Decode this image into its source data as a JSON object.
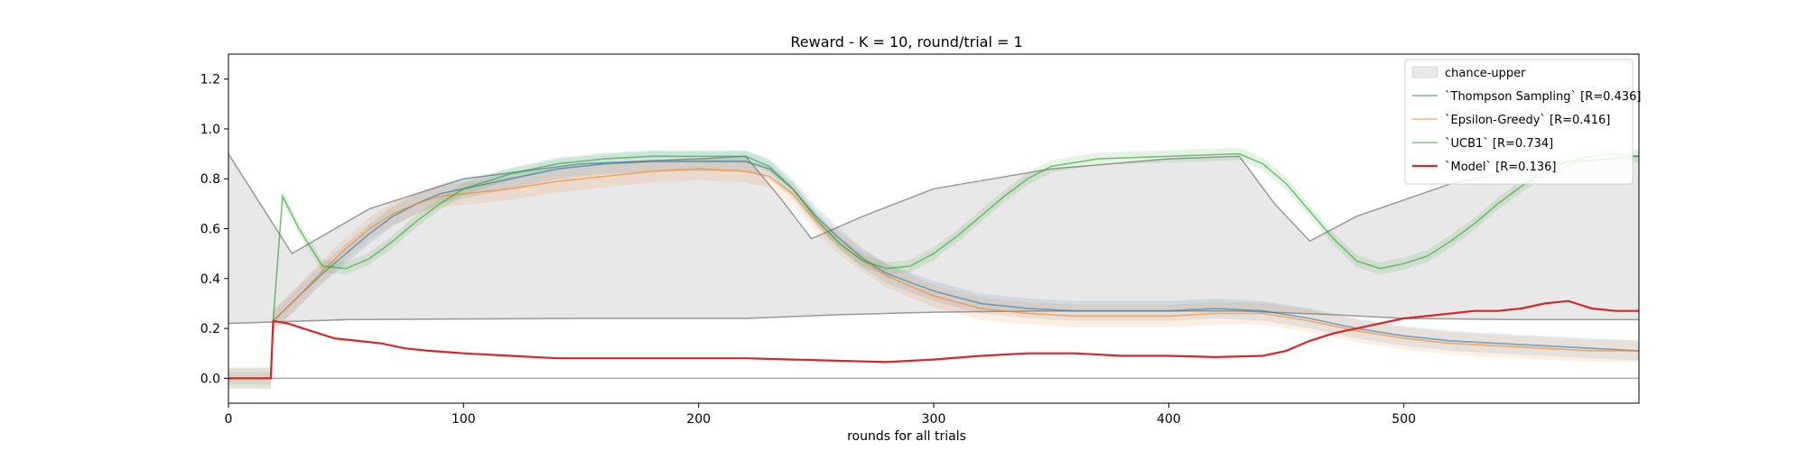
{
  "chart_data": {
    "type": "line",
    "title": "Reward - K = 10, round/trial = 1",
    "xlabel": "rounds for all trials",
    "ylabel": "",
    "xlim": [
      0,
      600
    ],
    "ylim": [
      -0.1,
      1.3
    ],
    "xticks": [
      0,
      100,
      200,
      300,
      400,
      500
    ],
    "yticks": [
      0.0,
      0.2,
      0.4,
      0.6,
      0.8,
      1.0,
      1.2
    ],
    "grid": false,
    "legend_position": "top-right",
    "reference_line": {
      "y": 0.0,
      "color": "#aaaaaa"
    },
    "chance_band": {
      "name": "chance-upper",
      "color": "#e8e8e8",
      "lower": {
        "x": [
          0,
          50,
          100,
          150,
          220,
          260,
          300,
          350,
          430,
          470,
          500,
          550,
          600
        ],
        "y": [
          0.22,
          0.235,
          0.238,
          0.24,
          0.24,
          0.255,
          0.265,
          0.27,
          0.27,
          0.255,
          0.24,
          0.235,
          0.235
        ]
      },
      "upper": {
        "x": [
          0,
          27,
          60,
          100,
          150,
          200,
          220,
          235,
          248,
          270,
          300,
          350,
          400,
          430,
          445,
          460,
          480,
          520,
          560,
          600
        ],
        "y": [
          0.9,
          0.5,
          0.68,
          0.8,
          0.86,
          0.88,
          0.89,
          0.72,
          0.56,
          0.65,
          0.76,
          0.84,
          0.88,
          0.89,
          0.7,
          0.55,
          0.65,
          0.78,
          0.86,
          0.89
        ]
      }
    },
    "series": [
      {
        "name": "`Thompson Sampling` [R=0.436]",
        "color": "#1f77b4",
        "x": [
          0,
          18,
          19,
          30,
          40,
          50,
          60,
          70,
          80,
          90,
          100,
          120,
          140,
          160,
          180,
          200,
          220,
          230,
          240,
          250,
          260,
          270,
          280,
          300,
          320,
          340,
          360,
          380,
          400,
          420,
          440,
          460,
          480,
          500,
          520,
          540,
          560,
          580,
          600
        ],
        "y": [
          0.0,
          0.0,
          0.23,
          0.33,
          0.42,
          0.5,
          0.58,
          0.65,
          0.7,
          0.74,
          0.76,
          0.8,
          0.84,
          0.86,
          0.87,
          0.87,
          0.87,
          0.84,
          0.76,
          0.65,
          0.56,
          0.48,
          0.42,
          0.35,
          0.3,
          0.28,
          0.27,
          0.27,
          0.27,
          0.28,
          0.27,
          0.24,
          0.2,
          0.17,
          0.15,
          0.14,
          0.13,
          0.12,
          0.11
        ]
      },
      {
        "name": "`Epsilon-Greedy` [R=0.416]",
        "color": "#ff7f0e",
        "x": [
          0,
          18,
          19,
          30,
          40,
          50,
          60,
          70,
          80,
          90,
          100,
          120,
          140,
          160,
          180,
          200,
          220,
          230,
          240,
          250,
          260,
          270,
          280,
          300,
          320,
          340,
          360,
          380,
          400,
          420,
          440,
          460,
          480,
          500,
          520,
          540,
          560,
          580,
          600
        ],
        "y": [
          0.0,
          0.0,
          0.23,
          0.33,
          0.43,
          0.52,
          0.6,
          0.66,
          0.7,
          0.73,
          0.74,
          0.76,
          0.79,
          0.81,
          0.83,
          0.84,
          0.83,
          0.81,
          0.74,
          0.63,
          0.54,
          0.47,
          0.41,
          0.33,
          0.28,
          0.26,
          0.25,
          0.25,
          0.25,
          0.26,
          0.26,
          0.23,
          0.19,
          0.16,
          0.14,
          0.13,
          0.12,
          0.11,
          0.11
        ]
      },
      {
        "name": "`UCB1` [R=0.734]",
        "color": "#2ca02c",
        "x": [
          0,
          18,
          19,
          23,
          30,
          40,
          50,
          60,
          70,
          80,
          90,
          100,
          120,
          140,
          160,
          180,
          200,
          220,
          230,
          240,
          250,
          260,
          270,
          280,
          290,
          300,
          310,
          320,
          330,
          340,
          350,
          370,
          400,
          430,
          440,
          450,
          460,
          470,
          480,
          490,
          500,
          510,
          520,
          530,
          540,
          550,
          560,
          570,
          580,
          590,
          600
        ],
        "y": [
          0.0,
          0.0,
          0.23,
          0.73,
          0.6,
          0.45,
          0.44,
          0.48,
          0.55,
          0.63,
          0.7,
          0.76,
          0.82,
          0.86,
          0.88,
          0.89,
          0.89,
          0.89,
          0.85,
          0.76,
          0.64,
          0.54,
          0.47,
          0.44,
          0.45,
          0.5,
          0.57,
          0.65,
          0.73,
          0.8,
          0.85,
          0.88,
          0.89,
          0.9,
          0.86,
          0.78,
          0.67,
          0.56,
          0.47,
          0.44,
          0.46,
          0.49,
          0.55,
          0.62,
          0.7,
          0.77,
          0.83,
          0.87,
          0.89,
          0.9,
          0.89
        ]
      },
      {
        "name": "`Model` [R=0.136]",
        "color": "#d62728",
        "x": [
          0,
          18,
          19,
          25,
          35,
          45,
          55,
          65,
          75,
          85,
          100,
          120,
          140,
          160,
          180,
          200,
          220,
          240,
          260,
          280,
          300,
          320,
          340,
          360,
          380,
          400,
          420,
          440,
          450,
          460,
          470,
          480,
          490,
          500,
          510,
          520,
          530,
          540,
          550,
          560,
          570,
          580,
          590,
          600
        ],
        "y": [
          0.0,
          0.0,
          0.23,
          0.22,
          0.19,
          0.16,
          0.15,
          0.14,
          0.12,
          0.11,
          0.1,
          0.09,
          0.08,
          0.08,
          0.08,
          0.08,
          0.08,
          0.075,
          0.07,
          0.065,
          0.075,
          0.09,
          0.1,
          0.1,
          0.09,
          0.09,
          0.085,
          0.09,
          0.11,
          0.15,
          0.18,
          0.2,
          0.22,
          0.24,
          0.25,
          0.26,
          0.27,
          0.27,
          0.28,
          0.3,
          0.31,
          0.28,
          0.27,
          0.27
        ]
      }
    ]
  }
}
